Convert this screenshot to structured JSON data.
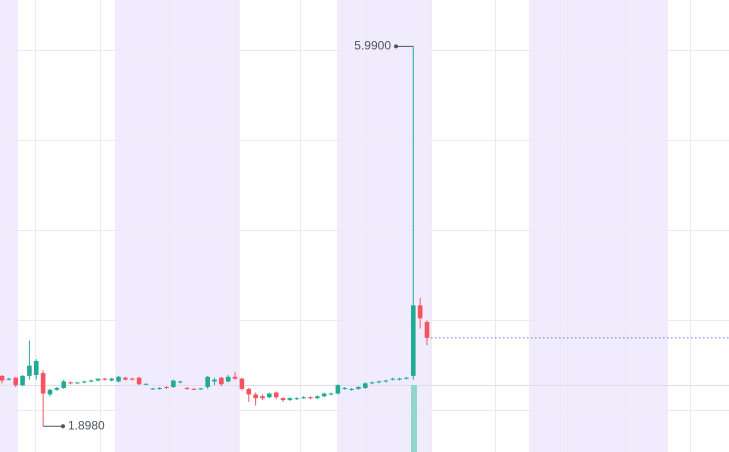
{
  "chart_data": {
    "type": "candlestick",
    "ylim": [
      1.62,
      6.49
    ],
    "grid": true,
    "up_color": "#22ab94",
    "down_color": "#f7525f",
    "candles": {
      "open": [
        2.44,
        2.4,
        2.42,
        2.34,
        2.44,
        2.45,
        2.47,
        2.24,
        2.29,
        2.31,
        2.37,
        2.36,
        2.37,
        2.38,
        2.39,
        2.41,
        2.39,
        2.38,
        2.42,
        2.41,
        2.42,
        2.35,
        2.3,
        2.3,
        2.32,
        2.32,
        2.37,
        2.31,
        2.3,
        2.3,
        2.32,
        2.38,
        2.42,
        2.38,
        2.43,
        2.41,
        2.3,
        2.24,
        2.22,
        2.21,
        2.26,
        2.2,
        2.18,
        2.19,
        2.2,
        2.21,
        2.2,
        2.22,
        2.24,
        2.25,
        2.3,
        2.29,
        2.3,
        2.31,
        2.36,
        2.37,
        2.38,
        2.4,
        2.4,
        2.41,
        2.44,
        3.2,
        3.02
      ],
      "high": [
        2.45,
        2.42,
        2.43,
        2.45,
        2.82,
        2.62,
        2.5,
        2.3,
        2.32,
        2.4,
        2.38,
        2.37,
        2.39,
        2.4,
        2.41,
        2.42,
        2.42,
        2.44,
        2.43,
        2.42,
        2.43,
        2.36,
        2.31,
        2.32,
        2.33,
        2.4,
        2.39,
        2.32,
        2.31,
        2.31,
        2.44,
        2.42,
        2.43,
        2.45,
        2.48,
        2.42,
        2.31,
        2.26,
        2.24,
        2.26,
        2.27,
        2.21,
        2.21,
        2.21,
        2.22,
        2.22,
        2.23,
        2.26,
        2.26,
        2.35,
        2.32,
        2.31,
        2.33,
        2.37,
        2.38,
        2.39,
        2.4,
        2.42,
        2.42,
        2.43,
        5.99,
        3.28,
        3.04
      ],
      "low": [
        2.36,
        2.39,
        2.32,
        2.33,
        2.4,
        2.4,
        1.898,
        2.22,
        2.28,
        2.3,
        2.35,
        2.35,
        2.36,
        2.37,
        2.38,
        2.39,
        2.38,
        2.37,
        2.39,
        2.39,
        2.34,
        2.34,
        2.29,
        2.29,
        2.3,
        2.31,
        2.36,
        2.29,
        2.29,
        2.29,
        2.3,
        2.34,
        2.33,
        2.37,
        2.4,
        2.28,
        2.16,
        2.12,
        2.18,
        2.2,
        2.19,
        2.16,
        2.17,
        2.18,
        2.19,
        2.19,
        2.19,
        2.21,
        2.23,
        2.24,
        2.29,
        2.28,
        2.29,
        2.3,
        2.35,
        2.36,
        2.37,
        2.39,
        2.39,
        2.4,
        2.4,
        2.95,
        2.77
      ],
      "close": [
        2.39,
        2.41,
        2.34,
        2.44,
        2.55,
        2.6,
        2.25,
        2.29,
        2.31,
        2.38,
        2.36,
        2.37,
        2.38,
        2.39,
        2.41,
        2.4,
        2.41,
        2.43,
        2.4,
        2.4,
        2.35,
        2.355,
        2.305,
        2.31,
        2.31,
        2.39,
        2.38,
        2.3,
        2.295,
        2.305,
        2.43,
        2.4,
        2.35,
        2.43,
        2.41,
        2.3,
        2.24,
        2.2,
        2.2,
        2.25,
        2.21,
        2.18,
        2.2,
        2.2,
        2.21,
        2.2,
        2.22,
        2.25,
        2.25,
        2.34,
        2.31,
        2.3,
        2.32,
        2.36,
        2.37,
        2.38,
        2.39,
        2.41,
        2.41,
        2.42,
        3.2,
        3.06,
        2.85
      ]
    },
    "max_label": {
      "value": 5.99,
      "label": "5.9900"
    },
    "min_label": {
      "value": 1.898,
      "label": "1.8980"
    }
  }
}
